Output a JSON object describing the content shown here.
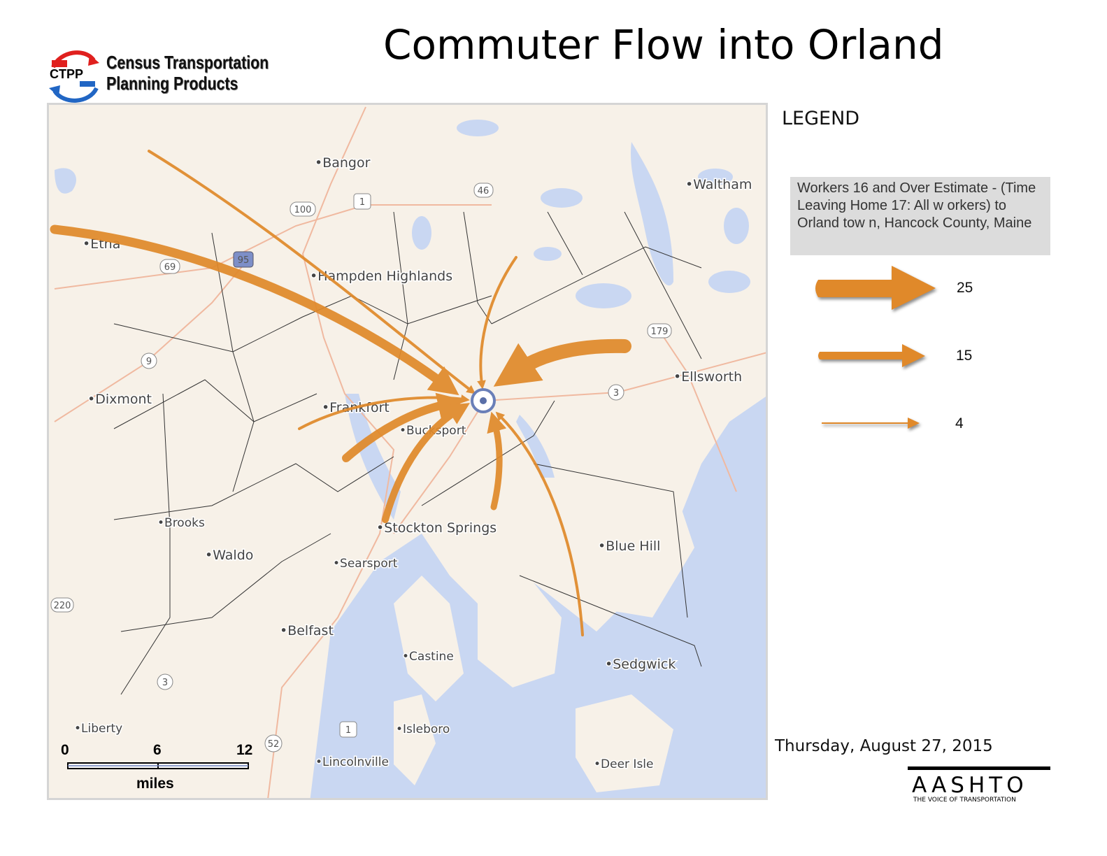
{
  "title": "Commuter Flow into Orland",
  "logo": {
    "abbr": "CTPP",
    "line1": "Census Transportation",
    "line2": "Planning Products"
  },
  "legend": {
    "title": "LEGEND",
    "description": "Workers 16 and Over Estimate - (Time Leaving Home 17: All w orkers) to Orland tow n, Hancock County, Maine",
    "items": [
      {
        "value": "25"
      },
      {
        "value": "15"
      },
      {
        "value": "4"
      }
    ],
    "arrow_color": "#e0892a"
  },
  "date": "Thursday, August 27, 2015",
  "aashto": {
    "name": "AASHTO",
    "tagline": "THE VOICE OF TRANSPORTATION"
  },
  "map": {
    "destination": "Orland",
    "towns": [
      "Bangor",
      "Waltham",
      "Etna",
      "Hampden Highlands",
      "Ellsworth",
      "Dixmont",
      "Frankfort",
      "Bucksport",
      "Brooks",
      "Stockton Springs",
      "Blue Hill",
      "Waldo",
      "Searsport",
      "Belfast",
      "Castine",
      "Sedgwick",
      "Liberty",
      "Isleboro",
      "Lincolnville",
      "Deer Isle"
    ],
    "route_shields": [
      "46",
      "1",
      "100",
      "95",
      "69",
      "179",
      "3",
      "9",
      "220",
      "3",
      "1",
      "52"
    ],
    "flows": [
      {
        "from": "Northwest",
        "class": 4
      },
      {
        "from": "Etna",
        "class": 15
      },
      {
        "from": "North",
        "class": 4
      },
      {
        "from": "Ellsworth",
        "class": 25
      },
      {
        "from": "Frankfort",
        "class": 4
      },
      {
        "from": "Bucksport west",
        "class": 15
      },
      {
        "from": "Stockton Springs",
        "class": 15
      },
      {
        "from": "South",
        "class": 15
      },
      {
        "from": "Blue Hill",
        "class": 4
      }
    ],
    "colors": {
      "land": "#f7f1e8",
      "water": "#c9d7f2",
      "boundary": "#222222",
      "road": "#f0b9a0"
    }
  },
  "scale": {
    "ticks": [
      "0",
      "6",
      "12"
    ],
    "unit": "miles"
  }
}
